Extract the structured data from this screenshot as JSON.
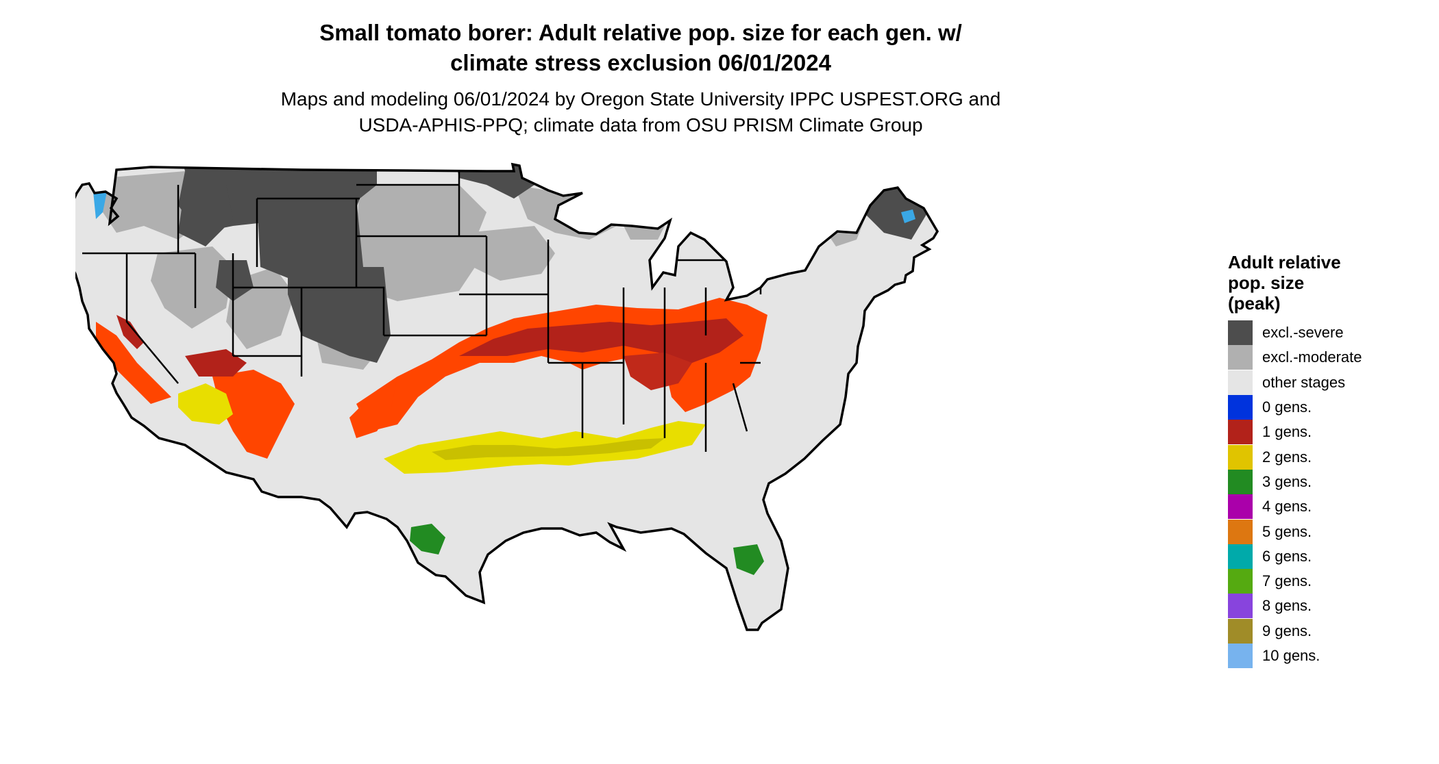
{
  "title": {
    "line1": "Small tomato borer: Adult relative pop. size for each gen. w/",
    "line2": "climate stress exclusion 06/01/2024"
  },
  "subtitle": {
    "line1": "Maps and modeling 06/01/2024 by Oregon State University IPPC USPEST.ORG and",
    "line2": "USDA-APHIS-PPQ; climate data from OSU PRISM Climate Group"
  },
  "legend": {
    "title_lines": [
      "Adult relative",
      "pop. size",
      "(peak)"
    ],
    "items": [
      {
        "label": "excl.-severe",
        "color": "#4d4d4d"
      },
      {
        "label": "excl.-moderate",
        "color": "#b0b0b0"
      },
      {
        "label": "other stages",
        "color": "#e5e5e5"
      },
      {
        "label": "0 gens.",
        "color": "#0033dd"
      },
      {
        "label": "1 gens.",
        "color": "#b2221a"
      },
      {
        "label": "2 gens.",
        "color": "#e0c400"
      },
      {
        "label": "3 gens.",
        "color": "#228b22"
      },
      {
        "label": "4 gens.",
        "color": "#aa00aa"
      },
      {
        "label": "5 gens.",
        "color": "#dd7711"
      },
      {
        "label": "6 gens.",
        "color": "#00aaaa"
      },
      {
        "label": "7 gens.",
        "color": "#55aa11"
      },
      {
        "label": "8 gens.",
        "color": "#8844dd"
      },
      {
        "label": "9 gens.",
        "color": "#a08c28"
      },
      {
        "label": "10 gens.",
        "color": "#77b3ee"
      }
    ]
  },
  "map": {
    "region": "conterminous United States",
    "colors": {
      "land": "#e5e5e5",
      "outline": "#000000",
      "excl_severe": "#4d4d4d",
      "excl_moderate": "#b0b0b0",
      "gen1_bright": "#ff4500",
      "gen1_dark": "#b2221a",
      "gen2": "#e8de00",
      "gen2_shade": "#c9c000",
      "gen3": "#228b22",
      "gen10": "#3aa8e6"
    },
    "zones": [
      {
        "name": "excl-severe-north-plains-rockies",
        "class": "excl.-severe"
      },
      {
        "name": "excl-severe-colorado",
        "class": "excl.-severe"
      },
      {
        "name": "excl-severe-minnesota",
        "class": "excl.-severe"
      },
      {
        "name": "excl-severe-maine",
        "class": "excl.-severe"
      },
      {
        "name": "excl-moderate-northwest",
        "class": "excl.-moderate"
      },
      {
        "name": "excl-moderate-great-basin",
        "class": "excl.-moderate"
      },
      {
        "name": "excl-moderate-plains",
        "class": "excl.-moderate"
      },
      {
        "name": "excl-moderate-great-lakes",
        "class": "excl.-moderate"
      },
      {
        "name": "excl-moderate-new-england",
        "class": "excl.-moderate"
      },
      {
        "name": "gen1-mid-latitude-band",
        "class": "1 gens."
      },
      {
        "name": "gen1-california",
        "class": "1 gens."
      },
      {
        "name": "gen1-southwest",
        "class": "1 gens."
      },
      {
        "name": "gen2-gulf-band",
        "class": "2 gens."
      },
      {
        "name": "gen2-arizona",
        "class": "2 gens."
      },
      {
        "name": "gen3-south-texas",
        "class": "3 gens."
      },
      {
        "name": "gen3-south-florida",
        "class": "3 gens."
      },
      {
        "name": "gen10-washington-cascades",
        "class": "10 gens."
      }
    ]
  }
}
